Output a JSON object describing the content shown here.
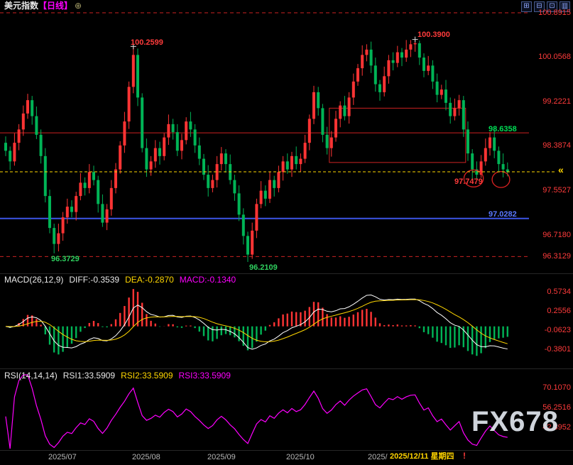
{
  "header": {
    "symbol": "美元指数",
    "period": "【日线】",
    "add_icon": "⊕",
    "toolbar_icons": [
      {
        "name": "layout-grid-icon",
        "glyph": "⊞"
      },
      {
        "name": "layout-rows-icon",
        "glyph": "⊟"
      },
      {
        "name": "layout-single-icon",
        "glyph": "⊡"
      },
      {
        "name": "layout-columns-icon",
        "glyph": "▥"
      }
    ]
  },
  "colors": {
    "background": "#000000",
    "candle_up": "#ff3434",
    "candle_down": "#00b456",
    "axis_text": "#ff3b3b",
    "resistance_line": "#cc2222",
    "resistance_label": "#00dd55",
    "support_line": "#3c55e6",
    "support_label": "#5a78ff",
    "current_price": "#ffd700",
    "bound_line": "#cc2222",
    "box_stroke": "#cc2222",
    "ellipse_stroke": "#dd2222",
    "diff_line": "#ffffff",
    "dea_line": "#ffd700",
    "macd_up": "#ff3434",
    "macd_down": "#00b456",
    "rsi_line": "#ff00ff",
    "high_label": "#ff3b3b",
    "low_label": "#2fd05f",
    "month_label": "#b8b8b8",
    "date_highlight": "#ffd400",
    "watermark": "#e1e6ee"
  },
  "macd_panel": {
    "title": "MACD(26,12,9)",
    "diff": "DIFF:-0.3539",
    "dea": "DEA:-0.2870",
    "macd": "MACD:-0.1340"
  },
  "rsi_panel": {
    "title": "RSI(14,14,14)",
    "rsi1": "RSI1:33.5909",
    "rsi2": "RSI2:33.5909",
    "rsi3": "RSI3:33.5909"
  },
  "watermark": "FX678",
  "chart_data": {
    "type": "candlestick",
    "title": "美元指数 日线",
    "y_ticks": [
      "100.8915",
      "100.0568",
      "99.2221",
      "98.3874",
      "97.5527",
      "96.7180"
    ],
    "x_ticks": [
      {
        "label": "2025/07",
        "index": 13
      },
      {
        "label": "2025/08",
        "index": 32
      },
      {
        "label": "2025/09",
        "index": 49
      },
      {
        "label": "2025/10",
        "index": 67
      },
      {
        "label": "2025/",
        "index": 85
      }
    ],
    "current_date_label": "2025/12/11 星期四",
    "alert_mark": "!",
    "bounds": {
      "upper": "100.8915",
      "lower": "96.3129"
    },
    "overlays": {
      "resistance": "98.6358",
      "support": "97.0282",
      "current_price": 97.905,
      "rectangle": {
        "from_index": 74,
        "to_index": 104,
        "price_top": 99.1,
        "price_bottom": 98.08
      },
      "ellipses": [
        {
          "index": 106.3,
          "price": 97.78,
          "rx": 2.2,
          "ry": 0.16
        },
        {
          "index": 112.5,
          "price": 97.76,
          "rx": 2.0,
          "ry": 0.15
        }
      ],
      "cross_markers": [
        {
          "index": 29
        },
        {
          "index": 93
        }
      ],
      "point_labels": [
        {
          "text": "100.2599",
          "index": 29,
          "kind": "high"
        },
        {
          "text": "100.3900",
          "index": 93,
          "kind": "high"
        },
        {
          "text": "96.3729",
          "index": 11,
          "kind": "low"
        },
        {
          "text": "96.2109",
          "index": 55,
          "kind": "low"
        },
        {
          "text": "97.7479",
          "index": 106,
          "kind": "low"
        }
      ]
    },
    "indicators": [
      {
        "type": "MACD",
        "params": [
          26,
          12,
          9
        ],
        "diff": -0.3539,
        "dea": -0.287,
        "macd": -0.134,
        "y_ticks": [
          "0.5734",
          "0.2556",
          "-0.0623",
          "-0.3801"
        ]
      },
      {
        "type": "RSI",
        "params": [
          14,
          14,
          14
        ],
        "rsi1": 33.5909,
        "rsi2": 33.5909,
        "rsi3": 33.5909,
        "y_ticks": [
          "70.1070",
          "56.2516",
          "42.3952"
        ]
      }
    ],
    "ohlc": [
      [
        98.45,
        98.57,
        98.2,
        98.3
      ],
      [
        98.3,
        98.38,
        97.94,
        98.1
      ],
      [
        98.1,
        98.63,
        98.02,
        98.45
      ],
      [
        98.45,
        98.8,
        98.31,
        98.7
      ],
      [
        98.7,
        99.15,
        98.58,
        99.0
      ],
      [
        99.0,
        99.37,
        98.9,
        99.25
      ],
      [
        99.25,
        99.33,
        98.79,
        98.95
      ],
      [
        98.95,
        99.13,
        98.52,
        98.6
      ],
      [
        98.6,
        98.7,
        98.06,
        98.2
      ],
      [
        98.2,
        98.35,
        97.33,
        97.45
      ],
      [
        97.45,
        97.57,
        96.75,
        96.85
      ],
      [
        96.85,
        96.93,
        96.3729,
        96.55
      ],
      [
        96.55,
        96.93,
        96.41,
        96.75
      ],
      [
        96.75,
        97.15,
        96.61,
        97.05
      ],
      [
        97.05,
        97.4,
        96.93,
        97.25
      ],
      [
        97.25,
        97.37,
        97.05,
        97.15
      ],
      [
        97.15,
        97.53,
        96.99,
        97.45
      ],
      [
        97.45,
        97.88,
        97.37,
        97.7
      ],
      [
        97.7,
        97.8,
        97.46,
        97.6
      ],
      [
        97.6,
        98.05,
        97.5,
        97.9
      ],
      [
        97.9,
        98.02,
        97.65,
        97.75
      ],
      [
        97.75,
        97.83,
        97.14,
        97.3
      ],
      [
        97.3,
        97.48,
        96.87,
        96.95
      ],
      [
        96.95,
        97.3,
        96.81,
        97.2
      ],
      [
        97.2,
        97.75,
        97.08,
        97.6
      ],
      [
        97.6,
        98.07,
        97.5,
        97.95
      ],
      [
        97.95,
        98.48,
        97.87,
        98.4
      ],
      [
        98.4,
        99.03,
        98.26,
        98.85
      ],
      [
        98.85,
        99.6,
        98.71,
        99.5
      ],
      [
        99.5,
        100.2599,
        99.38,
        100.1
      ],
      [
        100.1,
        100.22,
        99.14,
        99.3
      ],
      [
        99.3,
        99.38,
        98.27,
        98.35
      ],
      [
        98.35,
        98.53,
        97.81,
        97.95
      ],
      [
        97.95,
        98.2,
        97.83,
        98.1
      ],
      [
        98.1,
        98.5,
        97.98,
        98.35
      ],
      [
        98.35,
        98.47,
        98.04,
        98.2
      ],
      [
        98.2,
        98.63,
        98.12,
        98.55
      ],
      [
        98.55,
        98.98,
        98.41,
        98.8
      ],
      [
        98.8,
        98.9,
        98.51,
        98.65
      ],
      [
        98.65,
        98.8,
        98.2,
        98.3
      ],
      [
        98.3,
        98.62,
        98.14,
        98.5
      ],
      [
        98.5,
        98.93,
        98.42,
        98.85
      ],
      [
        98.85,
        99.03,
        98.56,
        98.7
      ],
      [
        98.7,
        98.8,
        98.26,
        98.4
      ],
      [
        98.4,
        98.55,
        98.03,
        98.15
      ],
      [
        98.15,
        98.24,
        97.75,
        97.85
      ],
      [
        97.85,
        98.03,
        97.44,
        97.6
      ],
      [
        97.6,
        97.85,
        97.52,
        97.75
      ],
      [
        97.75,
        98.2,
        97.61,
        98.05
      ],
      [
        98.05,
        98.37,
        97.93,
        98.25
      ],
      [
        98.25,
        98.33,
        97.89,
        98.05
      ],
      [
        98.05,
        98.23,
        97.67,
        97.75
      ],
      [
        97.75,
        97.85,
        97.36,
        97.5
      ],
      [
        97.5,
        97.65,
        96.98,
        97.1
      ],
      [
        97.1,
        97.22,
        96.54,
        96.7
      ],
      [
        96.7,
        96.78,
        96.2109,
        96.35
      ],
      [
        96.35,
        96.95,
        96.27,
        96.8
      ],
      [
        96.8,
        97.4,
        96.66,
        97.3
      ],
      [
        97.3,
        97.73,
        97.22,
        97.55
      ],
      [
        97.55,
        97.65,
        97.26,
        97.4
      ],
      [
        97.4,
        97.9,
        97.32,
        97.75
      ],
      [
        97.75,
        97.83,
        97.44,
        97.6
      ],
      [
        97.6,
        98.02,
        97.52,
        97.9
      ],
      [
        97.9,
        98.2,
        97.74,
        98.1
      ],
      [
        98.1,
        98.25,
        97.87,
        97.95
      ],
      [
        97.95,
        98.28,
        97.81,
        98.2
      ],
      [
        98.2,
        98.38,
        97.95,
        98.05
      ],
      [
        98.05,
        98.25,
        97.91,
        98.15
      ],
      [
        98.15,
        98.6,
        98.07,
        98.45
      ],
      [
        98.45,
        98.98,
        98.31,
        98.9
      ],
      [
        98.9,
        99.52,
        98.8,
        99.4
      ],
      [
        99.4,
        99.5,
        98.96,
        99.1
      ],
      [
        99.1,
        99.18,
        98.46,
        98.6
      ],
      [
        98.6,
        98.75,
        98.23,
        98.35
      ],
      [
        98.35,
        98.67,
        98.19,
        98.55
      ],
      [
        98.55,
        99.05,
        98.47,
        98.9
      ],
      [
        98.9,
        99.23,
        98.74,
        99.15
      ],
      [
        99.15,
        99.33,
        98.87,
        98.95
      ],
      [
        98.95,
        99.4,
        98.81,
        99.3
      ],
      [
        99.3,
        99.75,
        99.16,
        99.6
      ],
      [
        99.6,
        99.93,
        99.52,
        99.85
      ],
      [
        99.85,
        100.28,
        99.71,
        100.1
      ],
      [
        100.1,
        100.3,
        99.98,
        100.2
      ],
      [
        100.2,
        100.35,
        99.76,
        99.9
      ],
      [
        99.9,
        100.05,
        99.41,
        99.55
      ],
      [
        99.55,
        99.63,
        99.24,
        99.4
      ],
      [
        99.4,
        99.88,
        99.32,
        99.7
      ],
      [
        99.7,
        100.1,
        99.56,
        100.0
      ],
      [
        100.0,
        100.15,
        99.81,
        99.95
      ],
      [
        99.95,
        100.27,
        99.87,
        100.15
      ],
      [
        100.15,
        100.23,
        99.89,
        100.05
      ],
      [
        100.05,
        100.38,
        99.97,
        100.2
      ],
      [
        100.2,
        100.38,
        100.06,
        100.3
      ],
      [
        100.3,
        100.39,
        100.16,
        100.32
      ],
      [
        100.32,
        100.37,
        99.91,
        100.05
      ],
      [
        100.05,
        100.13,
        99.68,
        99.8
      ],
      [
        99.8,
        100.08,
        99.72,
        99.9
      ],
      [
        99.9,
        100.0,
        99.46,
        99.6
      ],
      [
        99.6,
        99.75,
        99.21,
        99.35
      ],
      [
        99.35,
        99.54,
        99.27,
        99.45
      ],
      [
        99.45,
        99.63,
        99.06,
        99.2
      ],
      [
        99.2,
        99.3,
        98.81,
        98.95
      ],
      [
        98.95,
        99.28,
        98.87,
        99.1
      ],
      [
        99.1,
        99.35,
        98.96,
        99.25
      ],
      [
        99.25,
        99.33,
        98.56,
        98.7
      ],
      [
        98.7,
        98.85,
        98.11,
        98.25
      ],
      [
        98.25,
        98.33,
        97.7479,
        97.95
      ],
      [
        97.95,
        98.1,
        97.77,
        97.85
      ],
      [
        97.85,
        98.22,
        97.79,
        98.1
      ],
      [
        98.1,
        98.53,
        98.02,
        98.35
      ],
      [
        98.35,
        98.65,
        98.21,
        98.55
      ],
      [
        98.55,
        98.7,
        98.16,
        98.3
      ],
      [
        98.3,
        98.38,
        97.91,
        98.05
      ],
      [
        98.05,
        98.25,
        97.8,
        97.95
      ],
      [
        97.95,
        98.08,
        97.82,
        97.9
      ]
    ]
  }
}
